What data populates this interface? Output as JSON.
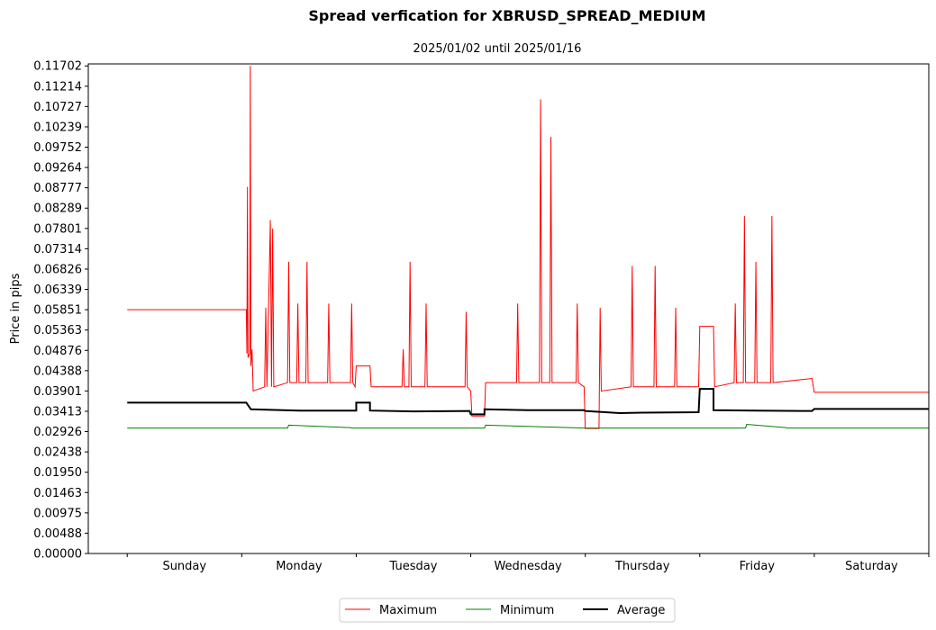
{
  "chart_data": {
    "type": "line",
    "title": "Spread verfication for XBRUSD_SPREAD_MEDIUM",
    "subtitle": "2025/01/02 until 2025/01/16",
    "ylabel": "Price in pips",
    "xlabel": "",
    "ylim": [
      0,
      0.1175
    ],
    "xlim": [
      -0.34,
      7.0
    ],
    "categories": [
      "Sunday",
      "Monday",
      "Tuesday",
      "Wednesday",
      "Thursday",
      "Friday",
      "Saturday"
    ],
    "yticks": [
      "0.00000",
      "0.00488",
      "0.00975",
      "0.01463",
      "0.01950",
      "0.02438",
      "0.02926",
      "0.03413",
      "0.03901",
      "0.04388",
      "0.04876",
      "0.05363",
      "0.05851",
      "0.06339",
      "0.06826",
      "0.07314",
      "0.07801",
      "0.08289",
      "0.08777",
      "0.09264",
      "0.09752",
      "0.10239",
      "0.10727",
      "0.11214",
      "0.11702"
    ],
    "grid": false,
    "legend_position": "bottom-center",
    "series": [
      {
        "name": "Maximum",
        "color": "#ff0000",
        "line_width": 1,
        "points": [
          [
            0.0,
            0.0585
          ],
          [
            1.04,
            0.0585
          ],
          [
            1.045,
            0.048
          ],
          [
            1.05,
            0.088
          ],
          [
            1.055,
            0.047
          ],
          [
            1.07,
            0.048
          ],
          [
            1.075,
            0.117
          ],
          [
            1.08,
            0.045
          ],
          [
            1.09,
            0.049
          ],
          [
            1.1,
            0.039
          ],
          [
            1.2,
            0.04
          ],
          [
            1.21,
            0.059
          ],
          [
            1.22,
            0.04
          ],
          [
            1.25,
            0.08
          ],
          [
            1.26,
            0.04
          ],
          [
            1.27,
            0.078
          ],
          [
            1.28,
            0.04
          ],
          [
            1.4,
            0.041
          ],
          [
            1.41,
            0.07
          ],
          [
            1.42,
            0.041
          ],
          [
            1.48,
            0.041
          ],
          [
            1.49,
            0.06
          ],
          [
            1.5,
            0.041
          ],
          [
            1.56,
            0.041
          ],
          [
            1.57,
            0.07
          ],
          [
            1.58,
            0.041
          ],
          [
            1.75,
            0.041
          ],
          [
            1.76,
            0.06
          ],
          [
            1.77,
            0.041
          ],
          [
            1.95,
            0.041
          ],
          [
            1.96,
            0.06
          ],
          [
            1.97,
            0.041
          ],
          [
            1.99,
            0.04
          ],
          [
            2.0,
            0.045
          ],
          [
            2.12,
            0.045
          ],
          [
            2.13,
            0.04
          ],
          [
            2.4,
            0.04
          ],
          [
            2.41,
            0.049
          ],
          [
            2.42,
            0.04
          ],
          [
            2.46,
            0.04
          ],
          [
            2.47,
            0.07
          ],
          [
            2.48,
            0.04
          ],
          [
            2.6,
            0.04
          ],
          [
            2.61,
            0.06
          ],
          [
            2.62,
            0.04
          ],
          [
            2.95,
            0.04
          ],
          [
            2.96,
            0.058
          ],
          [
            2.97,
            0.04
          ],
          [
            3.0,
            0.039
          ],
          [
            3.01,
            0.033
          ],
          [
            3.12,
            0.033
          ],
          [
            3.13,
            0.041
          ],
          [
            3.4,
            0.041
          ],
          [
            3.41,
            0.06
          ],
          [
            3.42,
            0.041
          ],
          [
            3.6,
            0.041
          ],
          [
            3.61,
            0.109
          ],
          [
            3.62,
            0.041
          ],
          [
            3.69,
            0.041
          ],
          [
            3.7,
            0.1
          ],
          [
            3.71,
            0.041
          ],
          [
            3.92,
            0.041
          ],
          [
            3.93,
            0.06
          ],
          [
            3.94,
            0.041
          ],
          [
            3.99,
            0.04
          ],
          [
            4.0,
            0.03
          ],
          [
            4.12,
            0.03
          ],
          [
            4.13,
            0.059
          ],
          [
            4.14,
            0.039
          ],
          [
            4.4,
            0.04
          ],
          [
            4.41,
            0.069
          ],
          [
            4.42,
            0.04
          ],
          [
            4.6,
            0.04
          ],
          [
            4.61,
            0.069
          ],
          [
            4.62,
            0.04
          ],
          [
            4.78,
            0.04
          ],
          [
            4.79,
            0.059
          ],
          [
            4.8,
            0.04
          ],
          [
            4.99,
            0.04
          ],
          [
            5.0,
            0.0545
          ],
          [
            5.12,
            0.0545
          ],
          [
            5.13,
            0.04
          ],
          [
            5.3,
            0.041
          ],
          [
            5.31,
            0.06
          ],
          [
            5.32,
            0.041
          ],
          [
            5.38,
            0.041
          ],
          [
            5.39,
            0.081
          ],
          [
            5.4,
            0.041
          ],
          [
            5.48,
            0.041
          ],
          [
            5.49,
            0.07
          ],
          [
            5.5,
            0.041
          ],
          [
            5.62,
            0.041
          ],
          [
            5.63,
            0.081
          ],
          [
            5.64,
            0.041
          ],
          [
            5.98,
            0.042
          ],
          [
            6.0,
            0.0387
          ],
          [
            7.0,
            0.0387
          ]
        ]
      },
      {
        "name": "Minimum",
        "color": "#008000",
        "line_width": 1,
        "points": [
          [
            0.0,
            0.0301
          ],
          [
            1.4,
            0.0301
          ],
          [
            1.41,
            0.0308
          ],
          [
            1.95,
            0.0302
          ],
          [
            1.96,
            0.0301
          ],
          [
            2.99,
            0.0301
          ],
          [
            3.0,
            0.0301
          ],
          [
            3.01,
            0.0301
          ],
          [
            3.12,
            0.0301
          ],
          [
            3.13,
            0.0308
          ],
          [
            3.99,
            0.0301
          ],
          [
            4.0,
            0.0301
          ],
          [
            4.12,
            0.0301
          ],
          [
            4.13,
            0.0301
          ],
          [
            5.4,
            0.0301
          ],
          [
            5.41,
            0.031
          ],
          [
            5.75,
            0.0302
          ],
          [
            5.76,
            0.0301
          ],
          [
            7.0,
            0.0301
          ]
        ]
      },
      {
        "name": "Average",
        "color": "#000000",
        "line_width": 2,
        "points": [
          [
            0.0,
            0.0362
          ],
          [
            1.04,
            0.0362
          ],
          [
            1.08,
            0.0346
          ],
          [
            1.5,
            0.0343
          ],
          [
            2.0,
            0.0343
          ],
          [
            2.0,
            0.0362
          ],
          [
            2.12,
            0.0362
          ],
          [
            2.12,
            0.0343
          ],
          [
            2.5,
            0.0341
          ],
          [
            2.99,
            0.0342
          ],
          [
            3.0,
            0.0334
          ],
          [
            3.12,
            0.0334
          ],
          [
            3.12,
            0.0346
          ],
          [
            3.5,
            0.0344
          ],
          [
            3.99,
            0.0344
          ],
          [
            4.0,
            0.0342
          ],
          [
            4.3,
            0.0337
          ],
          [
            4.5,
            0.0338
          ],
          [
            4.99,
            0.0339
          ],
          [
            5.0,
            0.0395
          ],
          [
            5.12,
            0.0395
          ],
          [
            5.12,
            0.0344
          ],
          [
            5.5,
            0.0343
          ],
          [
            5.98,
            0.0342
          ],
          [
            6.0,
            0.0347
          ],
          [
            7.0,
            0.0347
          ]
        ]
      }
    ]
  }
}
